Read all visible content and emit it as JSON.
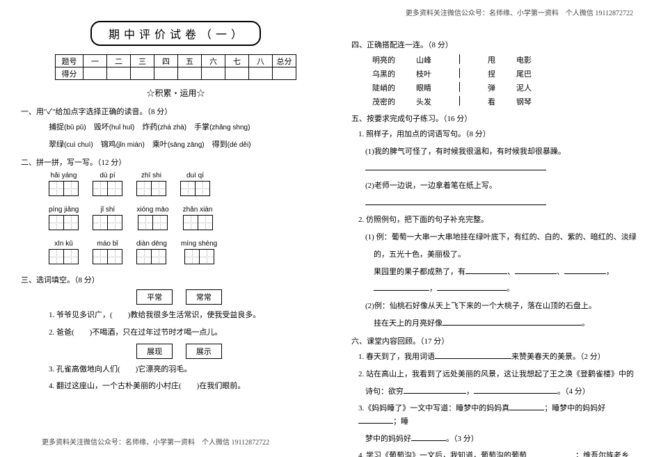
{
  "header_note": "更多资料关注微信公众号：名师缘、小学第一资料　个人微信 19112872722",
  "footer_note": "更多资料关注微信公众号：名师缘、小学第一资料　个人微信 19112872722",
  "title": "期 中 评 价 试 卷 （ 一 ）",
  "score_headers": [
    "题号",
    "一",
    "二",
    "三",
    "四",
    "五",
    "六",
    "七",
    "八",
    "总分"
  ],
  "score_row_label": "得分",
  "subtitle": "☆积累・运用☆",
  "s1": {
    "title": "一、用\"✓\"给加点字选择正确的读音。（8 分）",
    "row1": [
      {
        "w": "捕捉",
        "p": "(bǔ  pǔ)"
      },
      {
        "w": "毁坏",
        "p": "(huǐ  huī)"
      },
      {
        "w": "炸药",
        "p": "(zhá  zhà)"
      },
      {
        "w": "手掌",
        "p": "(zhǎng  shng)"
      }
    ],
    "row2": [
      {
        "w": "翠绿",
        "p": "(cuì  chuì)"
      },
      {
        "w": "锦鸡",
        "p": "(jǐn  mián)"
      },
      {
        "w": "乘叶",
        "p": "(sāng  zāng)"
      },
      {
        "w": "得到",
        "p": "(dé  děi)"
      }
    ]
  },
  "s2": {
    "title": "二、拼一拼，写一写。（12 分）",
    "rows": [
      [
        {
          "p": "hǎi  yáng",
          "n": 2
        },
        {
          "p": "dù   pí",
          "n": 2
        },
        {
          "p": "zhī  shi",
          "n": 2
        },
        {
          "p": "duì  qí",
          "n": 2
        }
      ],
      [
        {
          "p": "píng jiǎng",
          "n": 2
        },
        {
          "p": "jǐ   shí",
          "n": 2
        },
        {
          "p": "xióng māo",
          "n": 2
        },
        {
          "p": "zhǎn  xiàn",
          "n": 2
        }
      ],
      [
        {
          "p": "xīn   kǔ",
          "n": 2
        },
        {
          "p": "máo  bǐ",
          "n": 2
        },
        {
          "p": "diàn dēng",
          "n": 2
        },
        {
          "p": "míng shèng",
          "n": 2
        }
      ]
    ]
  },
  "s3": {
    "title": "三、选词填空。（8 分）",
    "set1": {
      "words": [
        "平常",
        "常常"
      ],
      "q1": "1. 爷爷见多识广，(　　)教给我很多生活常识，使我受益良多。",
      "q2": "2. 爸爸(　　)不喝酒，只在过年过节时才喝一点儿。"
    },
    "set2": {
      "words": [
        "展现",
        "展示"
      ],
      "q3": "3. 孔雀高傲地向人们(　　)它漂亮的羽毛。",
      "q4": "4. 翻过这座山，一个古朴美丽的小村庄(　　)在我们眼前。"
    }
  },
  "s4": {
    "title": "四、正确搭配连一连。（8 分）",
    "pairs_left": [
      [
        "明亮的",
        "山峰"
      ],
      [
        "乌黑的",
        "枝叶"
      ],
      [
        "陡峭的",
        "眼睛"
      ],
      [
        "茂密的",
        "头发"
      ]
    ],
    "pairs_right": [
      [
        "甩",
        "电影"
      ],
      [
        "捏",
        "尾巴"
      ],
      [
        "弹",
        "泥人"
      ],
      [
        "看",
        "钢琴"
      ]
    ]
  },
  "s5": {
    "title": "五、按要求完成句子练习。（16 分）",
    "q1_label": "1. 照样子，用加点的词语写句。（8 分）",
    "q1_1": "(1)我的脾气可怪了，有时候我很温和，有时候我却很暴躁。",
    "q1_2": "(2)老师一边说，一边拿着笔在纸上写。",
    "q2_label": "2. 仿照例句，把下面的句子补充完整。",
    "q2_1a": "(1) 例：葡萄一大串一大串地挂在绿叶底下，有红的、白的、紫的、暗红的、淡绿",
    "q2_1b": "的，五光十色，美丽极了。",
    "q2_1c": "果园里的果子都成熟了，有",
    "q2_2a": "(2)例：仙桃石好像从天上飞下来的一个大桃子，落在山顶的石盘上。",
    "q2_2b": "挂在天上的月亮好像"
  },
  "s6": {
    "title": "六、课堂内容回顾。（17 分）",
    "q1": "1. 春天到了，我用词语",
    "q1b": "来赞美春天的美景。（2 分）",
    "q2a": "2. 站在高山上，我看到了远处美丽的风景，这让我想起了王之涣《登鹳雀楼》中的",
    "q2b": "诗句：欲穷",
    "q2c": "。（4 分）",
    "q3a": "3.《妈妈睡了》一文中写道：睡梦中的妈妈真",
    "q3b": "；睡梦中的妈妈好",
    "q3c": "；睡",
    "q3d": "梦中的妈妈好",
    "q3e": "。（3 分）",
    "q4a": "4. 学习《葡萄沟》一文后，我知道，葡萄沟的葡萄",
    "q4b": "；维吾尔族老乡"
  }
}
